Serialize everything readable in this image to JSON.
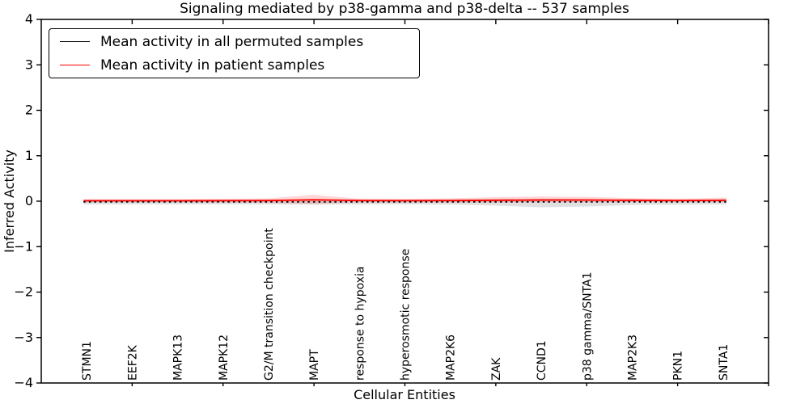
{
  "figure": {
    "background": "#ffffff",
    "accent_red": "#ff0000",
    "axis_color": "#000000"
  },
  "chart_data": {
    "type": "line",
    "title": "Signaling mediated by p38-gamma and p38-delta -- 537 samples",
    "xlabel": "Cellular Entities",
    "ylabel": "Inferred Activity",
    "xlim": [
      0,
      16
    ],
    "ylim": [
      -4,
      4
    ],
    "yticks": [
      4,
      3,
      2,
      1,
      0,
      -1,
      -2,
      -3,
      -4
    ],
    "ytick_labels": [
      "4",
      "3",
      "2",
      "1",
      "0",
      "−1",
      "−2",
      "−3",
      "−4"
    ],
    "top_bottom_tick_positions": [
      2,
      4,
      6,
      8,
      10,
      12,
      14,
      16
    ],
    "grid": false,
    "legend_position": "upper left",
    "categories": [
      "STMN1",
      "EEF2K",
      "MAPK13",
      "MAPK12",
      "G2/M transition checkpoint",
      "MAPT",
      "response to hypoxia",
      "hyperosmotic response",
      "MAP2K6",
      "ZAK",
      "CCND1",
      "p38 gamma/SNTA1",
      "MAP2K3",
      "PKN1",
      "SNTA1"
    ],
    "x": [
      1,
      2,
      3,
      4,
      5,
      6,
      7,
      8,
      9,
      10,
      11,
      12,
      13,
      14,
      15
    ],
    "series": [
      {
        "name": "Mean activity in all permuted samples",
        "color": "#000000",
        "line_style": "dotted",
        "values": [
          -0.015,
          -0.015,
          -0.015,
          -0.015,
          -0.015,
          -0.015,
          -0.015,
          -0.015,
          -0.015,
          -0.015,
          -0.015,
          -0.015,
          -0.015,
          -0.015,
          -0.015
        ],
        "band_hi": [
          0.045,
          0.045,
          0.045,
          0.045,
          0.045,
          0.05,
          0.045,
          0.045,
          0.05,
          0.06,
          0.07,
          0.06,
          0.05,
          0.045,
          0.05
        ],
        "band_lo": [
          -0.055,
          -0.055,
          -0.055,
          -0.055,
          -0.055,
          -0.06,
          -0.055,
          -0.055,
          -0.06,
          -0.08,
          -0.12,
          -0.1,
          -0.07,
          -0.06,
          -0.055
        ],
        "band_color": "#999999",
        "band_opacity": 0.3
      },
      {
        "name": "Mean activity in patient samples",
        "color": "#ff0000",
        "line_style": "solid",
        "values": [
          0.01,
          0.01,
          0.01,
          0.012,
          0.015,
          0.03,
          0.015,
          0.012,
          0.015,
          0.02,
          0.025,
          0.025,
          0.02,
          0.015,
          0.02
        ],
        "band_hi": [
          0.035,
          0.035,
          0.035,
          0.04,
          0.05,
          0.11,
          0.04,
          0.04,
          0.05,
          0.07,
          0.08,
          0.07,
          0.05,
          0.04,
          0.06
        ],
        "band_lo": [
          -0.035,
          -0.035,
          -0.035,
          -0.04,
          -0.05,
          -0.09,
          -0.04,
          -0.04,
          -0.045,
          -0.05,
          -0.05,
          -0.05,
          -0.04,
          -0.04,
          -0.04
        ],
        "band_color": "#ff0000",
        "band_opacity": 0.16
      }
    ]
  }
}
